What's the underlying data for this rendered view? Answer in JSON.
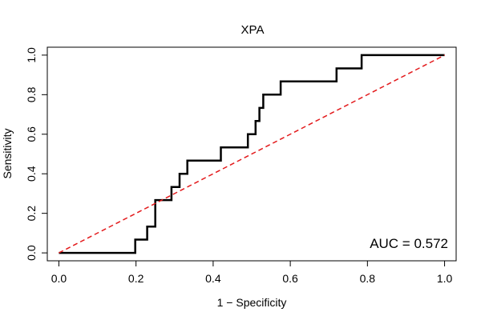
{
  "chart_data": {
    "type": "line",
    "title": "XPA",
    "xlabel": "1 − Specificity",
    "ylabel": "Sensitivity",
    "xlim": [
      -0.03,
      1.03
    ],
    "ylim": [
      -0.04,
      1.04
    ],
    "x_ticks": [
      "0.0",
      "0.2",
      "0.4",
      "0.6",
      "0.8",
      "1.0"
    ],
    "y_ticks": [
      "0.0",
      "0.2",
      "0.4",
      "0.6",
      "0.8",
      "1.0"
    ],
    "grid": false,
    "legend": "none",
    "annotation": "AUC = 0.572",
    "series": [
      {
        "style": "step",
        "color": "#000000",
        "x": [
          0.0,
          0.198,
          0.198,
          0.229,
          0.229,
          0.25,
          0.25,
          0.292,
          0.292,
          0.313,
          0.313,
          0.333,
          0.333,
          0.42,
          0.42,
          0.49,
          0.49,
          0.51,
          0.51,
          0.52,
          0.52,
          0.53,
          0.53,
          0.575,
          0.575,
          0.72,
          0.72,
          0.785,
          0.785,
          1.0
        ],
        "y": [
          0.0,
          0.0,
          0.067,
          0.067,
          0.133,
          0.133,
          0.267,
          0.267,
          0.333,
          0.333,
          0.4,
          0.4,
          0.467,
          0.467,
          0.533,
          0.533,
          0.6,
          0.6,
          0.667,
          0.667,
          0.733,
          0.733,
          0.8,
          0.8,
          0.867,
          0.867,
          0.933,
          0.933,
          1.0,
          1.0
        ]
      },
      {
        "style": "dashed",
        "color": "#e31a1c",
        "x": [
          0.0,
          1.0
        ],
        "y": [
          0.0,
          1.0
        ]
      }
    ]
  }
}
